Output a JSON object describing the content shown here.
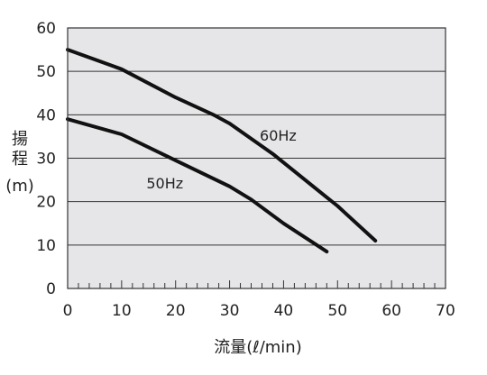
{
  "chart_data": {
    "type": "line",
    "title": "",
    "xlabel": "流量(ℓ/min)",
    "ylabel_lines": [
      "揚",
      "程",
      "(m)"
    ],
    "xlim": [
      0,
      70
    ],
    "ylim": [
      0,
      60
    ],
    "x_ticks": [
      0,
      10,
      20,
      30,
      40,
      50,
      60,
      70
    ],
    "x_minor_step": 2,
    "y_ticks": [
      0,
      10,
      20,
      30,
      40,
      50,
      60
    ],
    "grid": "horizontal",
    "background_color": "#e6e6e9",
    "line_color": "#111111",
    "series": [
      {
        "name": "60Hz",
        "label_at": [
          39,
          34
        ],
        "x": [
          0,
          10,
          20,
          27,
          30,
          38,
          40,
          48,
          50,
          57
        ],
        "y": [
          55,
          50.5,
          44,
          40,
          38,
          31,
          29,
          21,
          19,
          11
        ]
      },
      {
        "name": "50Hz",
        "label_at": [
          18,
          23
        ],
        "x": [
          0,
          10,
          20,
          30,
          34,
          40,
          48
        ],
        "y": [
          39,
          35.5,
          29.5,
          23.5,
          20.5,
          15,
          8.5
        ]
      }
    ]
  }
}
